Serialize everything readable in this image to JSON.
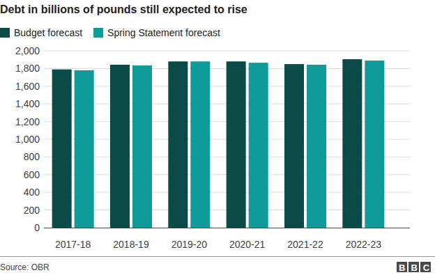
{
  "chart_data": {
    "type": "bar",
    "title": "Debt in billions of pounds still expected to rise",
    "categories": [
      "2017-18",
      "2018-19",
      "2019-20",
      "2020-21",
      "2021-22",
      "2022-23"
    ],
    "series": [
      {
        "name": "Budget forecast",
        "color": "#0b4b47",
        "values": [
          1790,
          1843,
          1880,
          1880,
          1850,
          1905
        ]
      },
      {
        "name": "Spring Statement forecast",
        "color": "#0e9b99",
        "values": [
          1780,
          1835,
          1880,
          1865,
          1843,
          1890
        ]
      }
    ],
    "ylim": [
      0,
      2000
    ],
    "yticks": [
      0,
      200,
      400,
      600,
      800,
      {
        "value": 1000,
        "label": "1,000"
      },
      {
        "value": 1200,
        "label": "1,200"
      },
      {
        "value": 1400,
        "label": "1,400"
      },
      {
        "value": 1600,
        "label": "1,600"
      },
      {
        "value": 1800,
        "label": "1,800"
      },
      {
        "value": 2000,
        "label": "2,000"
      }
    ],
    "grid": true,
    "legend": "top",
    "source": "Source: OBR",
    "logo": "BBC"
  }
}
